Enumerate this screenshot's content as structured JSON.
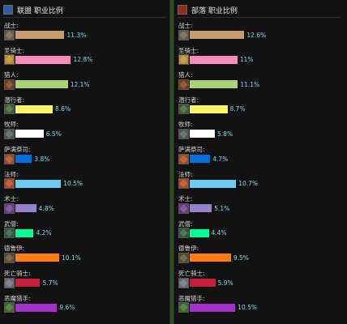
{
  "panels": {
    "alliance": {
      "title": "联盟 职业比例",
      "icon": "alliance-crest-icon",
      "icon_color": "#2f5fa8"
    },
    "horde": {
      "title": "部落 职业比例",
      "icon": "horde-crest-icon",
      "icon_color": "#9a2a1f"
    }
  },
  "chart_data": [
    {
      "type": "bar",
      "orientation": "horizontal",
      "title": "联盟 职业比例",
      "categories": [
        "战士:",
        "圣骑士:",
        "猎人:",
        "潜行者:",
        "牧师:",
        "萨满祭司:",
        "法师:",
        "术士:",
        "武僧:",
        "德鲁伊:",
        "死亡骑士:",
        "恶魔猎手:"
      ],
      "values": [
        11.3,
        12.8,
        12.1,
        8.6,
        6.5,
        3.8,
        10.5,
        4.8,
        4.2,
        10.1,
        5.7,
        9.6
      ],
      "labels": [
        "11.3%",
        "12.8%",
        "12.1%",
        "8.6%",
        "6.5%",
        "3.8%",
        "10.5%",
        "4.8%",
        "4.2%",
        "10.1%",
        "5.7%",
        "9.6%"
      ],
      "unit": "%"
    },
    {
      "type": "bar",
      "orientation": "horizontal",
      "title": "部落 职业比例",
      "categories": [
        "战士:",
        "圣骑士:",
        "猎人:",
        "潜行者:",
        "牧师:",
        "萨满祭司:",
        "法师:",
        "术士:",
        "武僧:",
        "德鲁伊:",
        "死亡骑士:",
        "恶魔猎手:"
      ],
      "values": [
        12.6,
        11.0,
        11.1,
        8.7,
        5.8,
        4.7,
        10.7,
        5.1,
        4.4,
        9.5,
        5.9,
        10.5
      ],
      "labels": [
        "12.6%",
        "11%",
        "11.1%",
        "8.7%",
        "5.8%",
        "4.7%",
        "10.7%",
        "5.1%",
        "4.4%",
        "9.5%",
        "5.9%",
        "10.5%"
      ],
      "unit": "%"
    }
  ],
  "classes": [
    {
      "bar_color": "#c79c6e",
      "icon": "warrior-sword-icon",
      "icon_color": "#6b5a44"
    },
    {
      "bar_color": "#f58cba",
      "icon": "paladin-hammer-icon",
      "icon_color": "#b98a2e"
    },
    {
      "bar_color": "#abd473",
      "icon": "hunter-bow-icon",
      "icon_color": "#7a3a16"
    },
    {
      "bar_color": "#fff569",
      "icon": "rogue-dagger-icon",
      "icon_color": "#3b5d2f"
    },
    {
      "bar_color": "#ffffff",
      "icon": "priest-staff-icon",
      "icon_color": "#4c5a55"
    },
    {
      "bar_color": "#0070de",
      "icon": "shaman-totem-icon",
      "icon_color": "#a24a1a"
    },
    {
      "bar_color": "#69ccf0",
      "icon": "mage-wand-icon",
      "icon_color": "#b0451e"
    },
    {
      "bar_color": "#9482c9",
      "icon": "warlock-skull-icon",
      "icon_color": "#6a3a88"
    },
    {
      "bar_color": "#00ff96",
      "icon": "monk-fist-icon",
      "icon_color": "#2b5a3c"
    },
    {
      "bar_color": "#ff7d0a",
      "icon": "druid-claw-icon",
      "icon_color": "#5a4a2a"
    },
    {
      "bar_color": "#c41f3b",
      "icon": "death-knight-rune-icon",
      "icon_color": "#6a6a7a"
    },
    {
      "bar_color": "#a330c9",
      "icon": "demon-hunter-glaive-icon",
      "icon_color": "#3a6a2a"
    }
  ]
}
